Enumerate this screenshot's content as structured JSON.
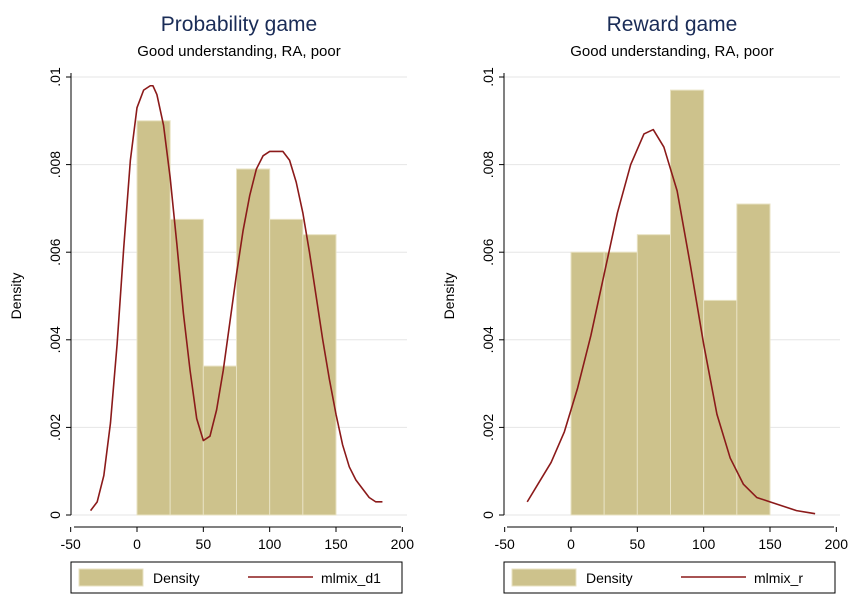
{
  "colors": {
    "bar_fill": "#cdc28c",
    "bar_stroke": "#e8e2c2",
    "curve": "#8b1a1a",
    "title": "#1a2c57",
    "grid": "#e6e6e6",
    "background": "#ffffff"
  },
  "chart_data": [
    {
      "type": "bar",
      "title": "Probability game",
      "subtitle": "Good understanding, RA, poor",
      "xlabel": "",
      "ylabel": "Density",
      "xlim": [
        -40,
        200
      ],
      "ylim": [
        0,
        0.01
      ],
      "x_ticks": [
        "-50",
        "0",
        "50",
        "100",
        "150",
        "200"
      ],
      "y_ticks": [
        "0",
        ".002",
        ".004",
        ".006",
        ".008",
        ".01"
      ],
      "grid": true,
      "legend_position": "bottom",
      "legend": [
        "Density",
        "mlmix_d1"
      ],
      "series": [
        {
          "name": "Density",
          "kind": "histogram",
          "bins": [
            {
              "from": 0,
              "to": 25,
              "value": 0.009
            },
            {
              "from": 25,
              "to": 50,
              "value": 0.00675
            },
            {
              "from": 50,
              "to": 75,
              "value": 0.0034
            },
            {
              "from": 75,
              "to": 100,
              "value": 0.0079
            },
            {
              "from": 100,
              "to": 125,
              "value": 0.00675
            },
            {
              "from": 125,
              "to": 150,
              "value": 0.0064
            }
          ]
        },
        {
          "name": "mlmix_d1",
          "kind": "line",
          "x": [
            -35,
            -30,
            -25,
            -20,
            -15,
            -10,
            -5,
            0,
            5,
            10,
            12,
            15,
            20,
            25,
            30,
            35,
            40,
            45,
            50,
            55,
            60,
            65,
            70,
            75,
            80,
            85,
            90,
            95,
            100,
            105,
            110,
            115,
            120,
            125,
            130,
            135,
            140,
            145,
            150,
            155,
            160,
            165,
            170,
            175,
            180,
            185
          ],
          "y": [
            0.0001,
            0.0003,
            0.0009,
            0.0021,
            0.0039,
            0.0061,
            0.0081,
            0.0093,
            0.0097,
            0.0098,
            0.0098,
            0.0096,
            0.0089,
            0.0077,
            0.0062,
            0.0046,
            0.0033,
            0.0022,
            0.0017,
            0.0018,
            0.0024,
            0.0033,
            0.0044,
            0.0055,
            0.0065,
            0.0073,
            0.0079,
            0.0082,
            0.0083,
            0.0083,
            0.0083,
            0.0081,
            0.0076,
            0.0069,
            0.006,
            0.005,
            0.004,
            0.0031,
            0.0023,
            0.0016,
            0.0011,
            0.0008,
            0.0006,
            0.0004,
            0.0003,
            0.0003
          ]
        }
      ]
    },
    {
      "type": "bar",
      "title": "Reward game",
      "subtitle": "Good understanding, RA, poor",
      "xlabel": "",
      "ylabel": "Density",
      "xlim": [
        -40,
        200
      ],
      "ylim": [
        0,
        0.01
      ],
      "x_ticks": [
        "-50",
        "0",
        "50",
        "100",
        "150",
        "200"
      ],
      "y_ticks": [
        "0",
        ".002",
        ".004",
        ".006",
        ".008",
        ".01"
      ],
      "grid": true,
      "legend_position": "bottom",
      "legend": [
        "Density",
        "mlmix_r"
      ],
      "series": [
        {
          "name": "Density",
          "kind": "histogram",
          "bins": [
            {
              "from": 0,
              "to": 25,
              "value": 0.006
            },
            {
              "from": 25,
              "to": 50,
              "value": 0.006
            },
            {
              "from": 50,
              "to": 75,
              "value": 0.0064
            },
            {
              "from": 75,
              "to": 100,
              "value": 0.0097
            },
            {
              "from": 100,
              "to": 125,
              "value": 0.0049
            },
            {
              "from": 125,
              "to": 150,
              "value": 0.0071
            }
          ]
        },
        {
          "name": "mlmix_r",
          "kind": "line",
          "x": [
            -33,
            -25,
            -15,
            -5,
            0,
            5,
            15,
            25,
            35,
            45,
            55,
            62,
            70,
            80,
            90,
            100,
            110,
            120,
            130,
            140,
            150,
            160,
            170,
            180,
            184
          ],
          "y": [
            0.0003,
            0.0007,
            0.0012,
            0.0019,
            0.0024,
            0.0029,
            0.0041,
            0.0055,
            0.0069,
            0.008,
            0.0087,
            0.0088,
            0.0084,
            0.0074,
            0.0057,
            0.0039,
            0.0023,
            0.0013,
            0.0007,
            0.0004,
            0.0003,
            0.0002,
            0.0001,
            5e-05,
            3e-05
          ]
        }
      ]
    }
  ]
}
